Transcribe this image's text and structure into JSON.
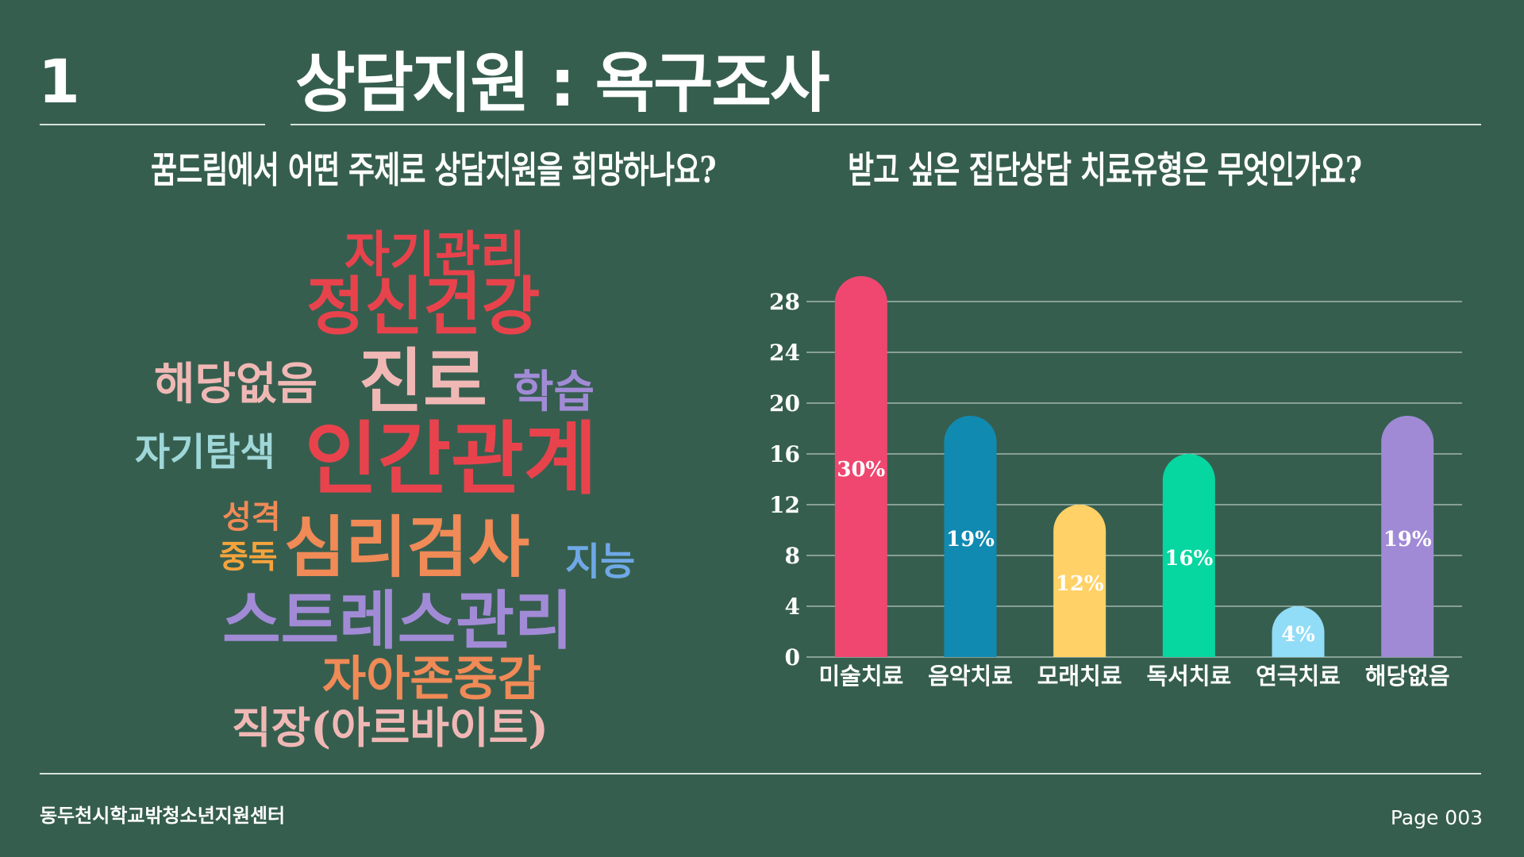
{
  "slide": {
    "number": "1",
    "title": "상담지원 : 욕구조사",
    "footer_org": "동두천시학교밖청소년지원센터",
    "footer_page": "Page 003"
  },
  "left_panel": {
    "question": "꿈드림에서 어떤 주제로 상담지원을 희망하나요?",
    "words": [
      {
        "text": "자기관리",
        "color": "#e8434c"
      },
      {
        "text": "정신건강",
        "color": "#e8434c"
      },
      {
        "text": "해당없음",
        "color": "#f0b8b5"
      },
      {
        "text": "진로",
        "color": "#f0b8b5"
      },
      {
        "text": "학습",
        "color": "#a28bd6"
      },
      {
        "text": "자기탐색",
        "color": "#9fd7d8"
      },
      {
        "text": "인간관계",
        "color": "#e8434c"
      },
      {
        "text": "성격",
        "color": "#f08a56"
      },
      {
        "text": "중독",
        "color": "#f5a33c"
      },
      {
        "text": "심리검사",
        "color": "#f08a56"
      },
      {
        "text": "지능",
        "color": "#6fa8e6"
      },
      {
        "text": "스트레스관리",
        "color": "#a28bd6"
      },
      {
        "text": "자아존중감",
        "color": "#f08a56"
      },
      {
        "text": "직장(아르바이트)",
        "color": "#f0b8b5"
      }
    ]
  },
  "right_panel": {
    "question": "받고 싶은 집단상담 치료유형은 무엇인가요?"
  },
  "chart_data": {
    "type": "bar",
    "title": "받고 싶은 집단상담 치료유형은 무엇인가요?",
    "categories": [
      "미술치료",
      "음악치료",
      "모래치료",
      "독서치료",
      "연극치료",
      "해당없음"
    ],
    "values": [
      30,
      19,
      12,
      16,
      4,
      19
    ],
    "data_labels": [
      "30%",
      "19%",
      "12%",
      "16%",
      "4%",
      "19%"
    ],
    "colors": [
      "#ef4770",
      "#118ab2",
      "#ffd166",
      "#06d6a0",
      "#91dcf6",
      "#a08ad6"
    ],
    "yticks": [
      0,
      4,
      8,
      12,
      16,
      20,
      24,
      28
    ],
    "ylim": [
      0,
      30
    ],
    "grid": true,
    "legend": "none"
  }
}
